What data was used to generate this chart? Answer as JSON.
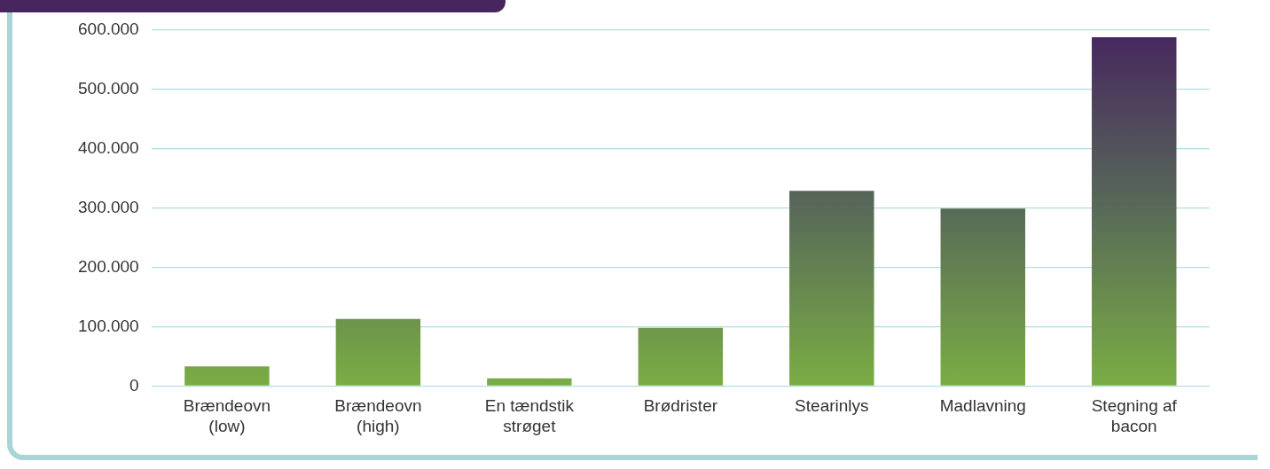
{
  "chart_data": {
    "type": "bar",
    "categories": [
      "Brændeovn\n(low)",
      "Brændeovn\n(high)",
      "En tændstik\nstrøget",
      "Brødrister",
      "Stearinlys",
      "Madlavning",
      "Stegning af\nbacon"
    ],
    "series": [
      {
        "color": "#7aad44",
        "values": [
          33000,
          113000,
          13000,
          98000,
          329000,
          299000,
          588000
        ]
      }
    ],
    "ylim": [
      0,
      600000
    ],
    "yticks": [
      {
        "value": 0,
        "label": "0"
      },
      {
        "value": 100000,
        "label": "100.000"
      },
      {
        "value": 200000,
        "label": "200.000"
      },
      {
        "value": 300000,
        "label": "300.000"
      },
      {
        "value": 400000,
        "label": "400.000"
      },
      {
        "value": 500000,
        "label": "500.000"
      },
      {
        "value": 600000,
        "label": "600.000"
      }
    ],
    "grid": "y",
    "legend": false
  }
}
